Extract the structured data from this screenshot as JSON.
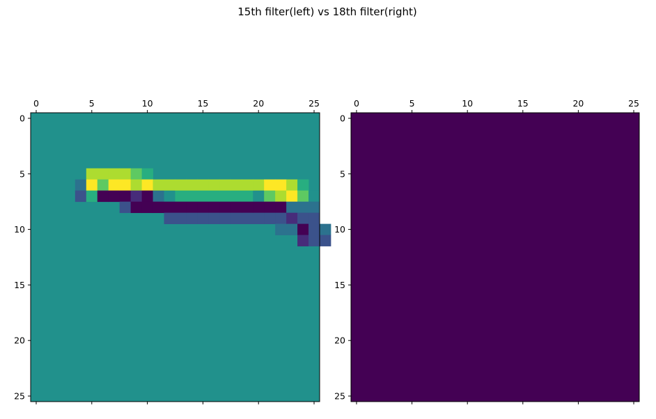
{
  "figure": {
    "title": "15th filter(left) vs 18th filter(right)"
  },
  "colors": {
    "base": "#21918c",
    "dark": "#440154",
    "palette": [
      "#440154",
      "#472c7a",
      "#3b528b",
      "#2c728e",
      "#21918c",
      "#28ae80",
      "#5ec962",
      "#addc30",
      "#fde725"
    ]
  },
  "chart_data": [
    {
      "type": "heatmap",
      "title": "",
      "x_ticks": [
        0,
        5,
        10,
        15,
        20,
        25
      ],
      "y_ticks": [
        0,
        5,
        10,
        15,
        20,
        25
      ],
      "xlim": [
        -0.5,
        25.5
      ],
      "ylim": [
        25.5,
        -0.5
      ],
      "colormap": "viridis",
      "background_level": 4,
      "cells": [
        [
          4,
          6,
          3
        ],
        [
          4,
          7,
          2
        ],
        [
          5,
          5,
          7
        ],
        [
          5,
          6,
          8
        ],
        [
          5,
          7,
          5
        ],
        [
          6,
          5,
          7
        ],
        [
          6,
          6,
          6
        ],
        [
          6,
          7,
          0
        ],
        [
          7,
          5,
          7
        ],
        [
          7,
          6,
          8
        ],
        [
          7,
          7,
          0
        ],
        [
          8,
          5,
          7
        ],
        [
          8,
          6,
          8
        ],
        [
          8,
          7,
          0
        ],
        [
          8,
          8,
          2
        ],
        [
          9,
          5,
          6
        ],
        [
          9,
          6,
          7
        ],
        [
          9,
          7,
          1
        ],
        [
          9,
          8,
          0
        ],
        [
          10,
          5,
          5
        ],
        [
          10,
          6,
          8
        ],
        [
          10,
          7,
          0
        ],
        [
          10,
          8,
          0
        ],
        [
          11,
          6,
          7
        ],
        [
          11,
          7,
          3
        ],
        [
          11,
          8,
          0
        ],
        [
          12,
          6,
          7
        ],
        [
          12,
          7,
          4
        ],
        [
          12,
          8,
          0
        ],
        [
          12,
          9,
          2
        ],
        [
          13,
          6,
          7
        ],
        [
          13,
          7,
          5
        ],
        [
          13,
          8,
          0
        ],
        [
          13,
          9,
          2
        ],
        [
          14,
          6,
          7
        ],
        [
          14,
          7,
          5
        ],
        [
          14,
          8,
          0
        ],
        [
          14,
          9,
          2
        ],
        [
          15,
          6,
          7
        ],
        [
          15,
          7,
          5
        ],
        [
          15,
          8,
          0
        ],
        [
          15,
          9,
          2
        ],
        [
          16,
          6,
          7
        ],
        [
          16,
          7,
          5
        ],
        [
          16,
          8,
          0
        ],
        [
          16,
          9,
          2
        ],
        [
          17,
          6,
          7
        ],
        [
          17,
          7,
          5
        ],
        [
          17,
          8,
          0
        ],
        [
          17,
          9,
          2
        ],
        [
          18,
          6,
          7
        ],
        [
          18,
          7,
          5
        ],
        [
          18,
          8,
          0
        ],
        [
          18,
          9,
          2
        ],
        [
          19,
          6,
          7
        ],
        [
          19,
          7,
          5
        ],
        [
          19,
          8,
          0
        ],
        [
          19,
          9,
          2
        ],
        [
          20,
          6,
          7
        ],
        [
          20,
          7,
          4
        ],
        [
          20,
          8,
          0
        ],
        [
          20,
          9,
          2
        ],
        [
          21,
          6,
          8
        ],
        [
          21,
          7,
          6
        ],
        [
          21,
          8,
          0
        ],
        [
          21,
          9,
          2
        ],
        [
          22,
          6,
          8
        ],
        [
          22,
          7,
          7
        ],
        [
          22,
          8,
          0
        ],
        [
          22,
          9,
          2
        ],
        [
          22,
          10,
          3
        ],
        [
          23,
          6,
          7
        ],
        [
          23,
          7,
          8
        ],
        [
          23,
          8,
          3
        ],
        [
          23,
          9,
          1
        ],
        [
          23,
          10,
          3
        ],
        [
          24,
          6,
          5
        ],
        [
          24,
          7,
          6
        ],
        [
          24,
          8,
          3
        ],
        [
          24,
          9,
          2
        ],
        [
          24,
          10,
          0
        ],
        [
          24,
          11,
          1
        ],
        [
          25,
          7,
          4
        ],
        [
          25,
          8,
          3
        ],
        [
          25,
          9,
          2
        ],
        [
          25,
          10,
          2
        ],
        [
          25,
          11,
          2
        ],
        [
          26,
          10,
          3
        ],
        [
          26,
          11,
          2
        ]
      ]
    },
    {
      "type": "heatmap",
      "title": "",
      "x_ticks": [
        0,
        5,
        10,
        15,
        20,
        25
      ],
      "y_ticks": [
        0,
        5,
        10,
        15,
        20,
        25
      ],
      "xlim": [
        -0.5,
        25.5
      ],
      "ylim": [
        25.5,
        -0.5
      ],
      "colormap": "viridis",
      "background_level": 0,
      "cells": []
    }
  ]
}
